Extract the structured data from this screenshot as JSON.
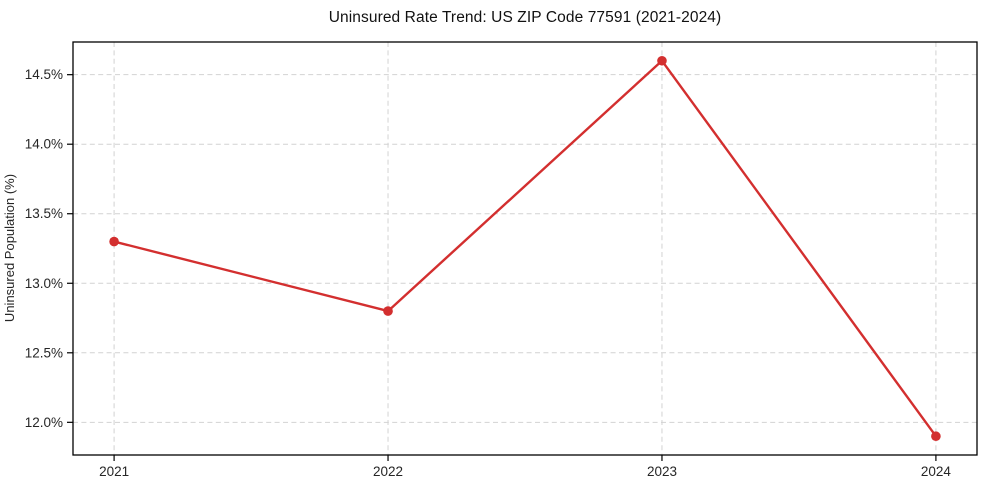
{
  "figure": {
    "background": "#ffffff"
  },
  "chart_data": {
    "type": "line",
    "title": "Uninsured Rate Trend: US ZIP Code 77591 (2021-2024)",
    "xlabel": "",
    "ylabel": "Uninsured Population (%)",
    "x": [
      2021,
      2022,
      2023,
      2024
    ],
    "series": [
      {
        "name": "uninsured-rate",
        "values": [
          13.3,
          12.8,
          14.6,
          11.9
        ],
        "color": "#d32f2f",
        "marker": "circle"
      }
    ],
    "xticks": [
      2021,
      2022,
      2023,
      2024
    ],
    "xtick_labels": [
      "2021",
      "2022",
      "2023",
      "2024"
    ],
    "yticks": [
      12.0,
      12.5,
      13.0,
      13.5,
      14.0,
      14.5
    ],
    "ytick_labels": [
      "12.0%",
      "12.5%",
      "13.0%",
      "13.5%",
      "14.0%",
      "14.5%"
    ],
    "xlim": [
      2020.85,
      2024.15
    ],
    "ylim": [
      11.765,
      14.735
    ],
    "grid": true,
    "grid_style": "dashed",
    "grid_color": "#d2d2d2",
    "spine_color": "#000000",
    "legend": "none"
  }
}
